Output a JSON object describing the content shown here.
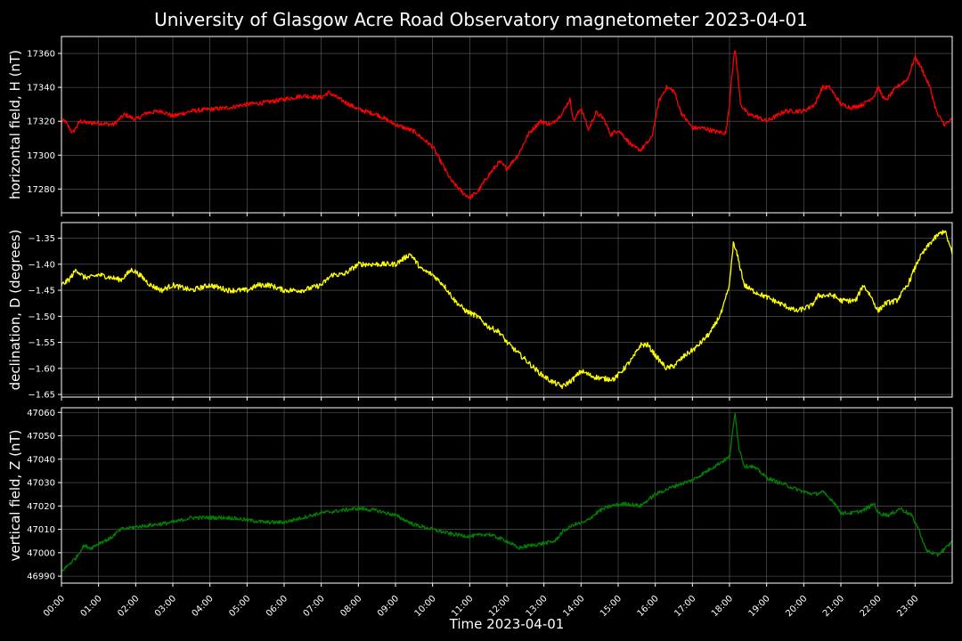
{
  "chart_data": {
    "type": "line",
    "title": "University of Glasgow Acre Road Observatory magnetometer 2023-04-01",
    "xlabel": "Time 2023-04-01",
    "x_tick_labels": [
      "00:00",
      "01:00",
      "02:00",
      "03:00",
      "04:00",
      "05:00",
      "06:00",
      "07:00",
      "08:00",
      "09:00",
      "10:00",
      "11:00",
      "12:00",
      "13:00",
      "14:00",
      "15:00",
      "16:00",
      "17:00",
      "18:00",
      "19:00",
      "20:00",
      "21:00",
      "22:00",
      "23:00"
    ],
    "x_range_hours": [
      0,
      24
    ],
    "grid": true,
    "panels": [
      {
        "id": "H",
        "ylabel": "horizontal field, H (nT)",
        "color": "#ff0000",
        "ylim": [
          17266,
          17370
        ],
        "yticks": [
          17280,
          17300,
          17320,
          17340,
          17360
        ],
        "ytick_labels": [
          "17280",
          "17300",
          "17320",
          "17340",
          "17360"
        ],
        "noise": 1.3,
        "x_hours": [
          0,
          0.1,
          0.3,
          0.5,
          0.7,
          1.0,
          1.4,
          1.7,
          2.0,
          2.3,
          2.7,
          3.0,
          3.5,
          4.0,
          4.5,
          5.0,
          5.5,
          6.0,
          6.5,
          7.0,
          7.2,
          7.5,
          8.0,
          8.5,
          9.0,
          9.5,
          10.0,
          10.3,
          10.5,
          10.8,
          11.0,
          11.2,
          11.5,
          11.8,
          12.0,
          12.3,
          12.6,
          12.9,
          13.2,
          13.5,
          13.7,
          13.8,
          14.0,
          14.2,
          14.4,
          14.6,
          14.8,
          15.0,
          15.2,
          15.4,
          15.6,
          15.9,
          16.1,
          16.3,
          16.5,
          16.7,
          17.0,
          17.3,
          17.6,
          17.9,
          18.0,
          18.05,
          18.15,
          18.3,
          18.5,
          18.7,
          19.0,
          19.5,
          20.0,
          20.3,
          20.5,
          20.7,
          21.0,
          21.3,
          21.6,
          21.9,
          22.0,
          22.2,
          22.5,
          22.8,
          23.0,
          23.2,
          23.4,
          23.6,
          23.8,
          24.0
        ],
        "values": [
          17320,
          17320,
          17313,
          17320,
          17319,
          17319,
          17318,
          17324,
          17321,
          17325,
          17326,
          17323,
          17326,
          17327,
          17328,
          17330,
          17331,
          17333,
          17335,
          17334,
          17337,
          17333,
          17327,
          17324,
          17318,
          17314,
          17305,
          17293,
          17285,
          17278,
          17275,
          17278,
          17288,
          17296,
          17292,
          17300,
          17313,
          17320,
          17318,
          17325,
          17333,
          17320,
          17328,
          17315,
          17325,
          17322,
          17312,
          17315,
          17310,
          17305,
          17303,
          17310,
          17332,
          17340,
          17338,
          17325,
          17316,
          17316,
          17314,
          17313,
          17330,
          17345,
          17363,
          17330,
          17324,
          17323,
          17320,
          17326,
          17326,
          17330,
          17340,
          17340,
          17330,
          17328,
          17330,
          17335,
          17340,
          17332,
          17340,
          17345,
          17358,
          17350,
          17340,
          17324,
          17318,
          17321
        ]
      },
      {
        "id": "D",
        "ylabel": "declination, D (degrees)",
        "color": "#ffff00",
        "ylim": [
          -1.655,
          -1.32
        ],
        "yticks": [
          -1.65,
          -1.6,
          -1.55,
          -1.5,
          -1.45,
          -1.4,
          -1.35
        ],
        "ytick_labels": [
          "−1.65",
          "−1.60",
          "−1.55",
          "−1.50",
          "−1.45",
          "−1.40",
          "−1.35"
        ],
        "noise": 0.005,
        "x_hours": [
          0,
          0.2,
          0.4,
          0.6,
          0.8,
          1.0,
          1.3,
          1.6,
          1.9,
          2.1,
          2.4,
          2.7,
          3.0,
          3.5,
          4.0,
          4.5,
          5.0,
          5.3,
          5.6,
          6.0,
          6.5,
          7.0,
          7.3,
          7.6,
          8.0,
          8.5,
          9.0,
          9.2,
          9.4,
          9.7,
          10.0,
          10.3,
          10.6,
          10.9,
          11.2,
          11.5,
          11.8,
          12.0,
          12.3,
          12.6,
          12.9,
          13.2,
          13.5,
          13.8,
          14.0,
          14.3,
          14.6,
          14.9,
          15.1,
          15.4,
          15.6,
          15.8,
          16.0,
          16.3,
          16.5,
          16.8,
          17.1,
          17.5,
          17.8,
          18.0,
          18.1,
          18.2,
          18.4,
          18.6,
          18.9,
          19.2,
          19.5,
          19.8,
          20.0,
          20.2,
          20.4,
          20.6,
          20.8,
          21.0,
          21.2,
          21.4,
          21.6,
          21.8,
          22.0,
          22.2,
          22.5,
          22.8,
          23.1,
          23.4,
          23.6,
          23.8,
          24.0
        ],
        "values": [
          -1.44,
          -1.43,
          -1.41,
          -1.425,
          -1.425,
          -1.42,
          -1.425,
          -1.43,
          -1.41,
          -1.42,
          -1.44,
          -1.45,
          -1.44,
          -1.45,
          -1.44,
          -1.45,
          -1.45,
          -1.44,
          -1.44,
          -1.45,
          -1.45,
          -1.44,
          -1.42,
          -1.42,
          -1.4,
          -1.4,
          -1.4,
          -1.39,
          -1.38,
          -1.41,
          -1.42,
          -1.44,
          -1.47,
          -1.49,
          -1.5,
          -1.52,
          -1.53,
          -1.55,
          -1.57,
          -1.59,
          -1.61,
          -1.625,
          -1.635,
          -1.62,
          -1.605,
          -1.615,
          -1.62,
          -1.62,
          -1.605,
          -1.58,
          -1.555,
          -1.555,
          -1.575,
          -1.6,
          -1.595,
          -1.575,
          -1.56,
          -1.53,
          -1.49,
          -1.44,
          -1.36,
          -1.38,
          -1.44,
          -1.45,
          -1.46,
          -1.47,
          -1.48,
          -1.49,
          -1.485,
          -1.48,
          -1.46,
          -1.46,
          -1.46,
          -1.47,
          -1.47,
          -1.47,
          -1.44,
          -1.46,
          -1.49,
          -1.475,
          -1.47,
          -1.44,
          -1.39,
          -1.36,
          -1.345,
          -1.335,
          -1.38
        ]
      },
      {
        "id": "Z",
        "ylabel": "vertical field, Z (nT)",
        "color": "#008000",
        "ylim": [
          46987,
          47062
        ],
        "yticks": [
          46990,
          47000,
          47010,
          47020,
          47030,
          47040,
          47050,
          47060
        ],
        "ytick_labels": [
          "46990",
          "47000",
          "47010",
          "47020",
          "47030",
          "47040",
          "47050",
          "47060"
        ],
        "noise": 0.8,
        "x_hours": [
          0,
          0.2,
          0.4,
          0.6,
          0.8,
          1.0,
          1.3,
          1.6,
          2.0,
          2.5,
          3.0,
          3.5,
          4.0,
          4.5,
          5.0,
          5.5,
          6.0,
          6.5,
          7.0,
          7.5,
          8.0,
          8.5,
          9.0,
          9.5,
          10.0,
          10.5,
          11.0,
          11.5,
          12.0,
          12.3,
          12.6,
          13.0,
          13.3,
          13.5,
          13.8,
          14.1,
          14.5,
          14.8,
          15.2,
          15.6,
          16.0,
          16.3,
          16.6,
          17.0,
          17.3,
          17.6,
          17.9,
          18.0,
          18.15,
          18.25,
          18.4,
          18.6,
          18.8,
          19.0,
          19.5,
          20.0,
          20.3,
          20.5,
          20.8,
          21.0,
          21.3,
          21.6,
          21.9,
          22.0,
          22.3,
          22.6,
          22.9,
          23.1,
          23.3,
          23.6,
          23.9,
          24.0
        ],
        "values": [
          46992,
          46995,
          46998,
          47003,
          47002,
          47004,
          47006,
          47010,
          47011,
          47012,
          47013,
          47015,
          47015,
          47015,
          47014,
          47013,
          47013,
          47015,
          47017,
          47018,
          47019,
          47018,
          47016,
          47012,
          47010,
          47008,
          47007,
          47008,
          47005,
          47002,
          47003,
          47004,
          47005,
          47009,
          47012,
          47013,
          47018,
          47020,
          47021,
          47020,
          47025,
          47027,
          47029,
          47031,
          47034,
          47037,
          47040,
          47041,
          47060,
          47045,
          47037,
          47037,
          47035,
          47032,
          47029,
          47026,
          47025,
          47026,
          47022,
          47017,
          47017,
          47018,
          47021,
          47017,
          47016,
          47019,
          47016,
          47010,
          47001,
          46999,
          47003,
          47005
        ]
      }
    ]
  }
}
